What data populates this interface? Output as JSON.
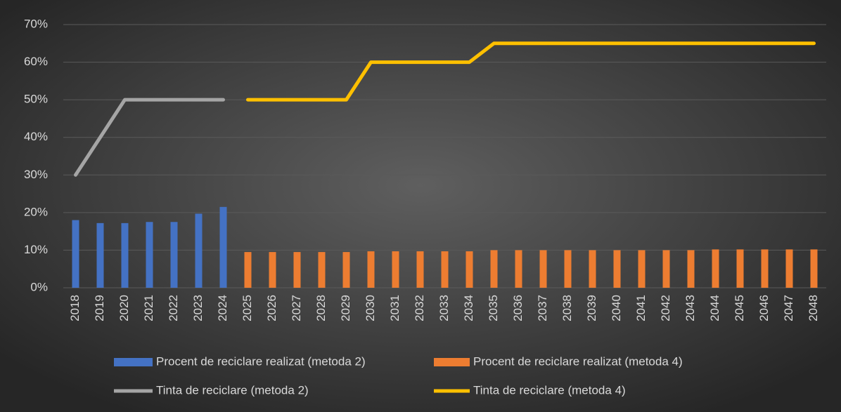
{
  "chart_data": {
    "type": "bar",
    "categories": [
      "2018",
      "2019",
      "2020",
      "2021",
      "2022",
      "2023",
      "2024",
      "2025",
      "2026",
      "2027",
      "2028",
      "2029",
      "2030",
      "2031",
      "2032",
      "2033",
      "2034",
      "2035",
      "2036",
      "2037",
      "2038",
      "2039",
      "2040",
      "2041",
      "2042",
      "2043",
      "2044",
      "2045",
      "2046",
      "2047",
      "2048"
    ],
    "series": [
      {
        "name": "Procent de reciclare realizat (metoda 2)",
        "type": "bar",
        "color": "#4472c4",
        "values": [
          18,
          17.2,
          17.2,
          17.5,
          17.5,
          19.7,
          21.5,
          null,
          null,
          null,
          null,
          null,
          null,
          null,
          null,
          null,
          null,
          null,
          null,
          null,
          null,
          null,
          null,
          null,
          null,
          null,
          null,
          null,
          null,
          null,
          null
        ]
      },
      {
        "name": "Procent de reciclare realizat (metoda 4)",
        "type": "bar",
        "color": "#ed7d31",
        "values": [
          null,
          null,
          null,
          null,
          null,
          null,
          null,
          9.5,
          9.5,
          9.5,
          9.5,
          9.5,
          9.7,
          9.7,
          9.7,
          9.7,
          9.7,
          10,
          10,
          10,
          10,
          10,
          10,
          10,
          10,
          10,
          10.2,
          10.2,
          10.2,
          10.2,
          10.2
        ]
      },
      {
        "name": "Tinta de reciclare (metoda 2)",
        "type": "line",
        "color": "#a5a5a5",
        "values": [
          30,
          40,
          50,
          50,
          50,
          50,
          50,
          null,
          null,
          null,
          null,
          null,
          null,
          null,
          null,
          null,
          null,
          null,
          null,
          null,
          null,
          null,
          null,
          null,
          null,
          null,
          null,
          null,
          null,
          null,
          null
        ]
      },
      {
        "name": "Tinta de reciclare (metoda 4)",
        "type": "line",
        "color": "#ffc000",
        "values": [
          null,
          null,
          null,
          null,
          null,
          null,
          null,
          50,
          50,
          50,
          50,
          50,
          60,
          60,
          60,
          60,
          60,
          65,
          65,
          65,
          65,
          65,
          65,
          65,
          65,
          65,
          65,
          65,
          65,
          65,
          65
        ]
      }
    ],
    "ylim": [
      0,
      70
    ],
    "yticks": [
      {
        "value": 0,
        "label": "0%"
      },
      {
        "value": 10,
        "label": "10%"
      },
      {
        "value": 20,
        "label": "20%"
      },
      {
        "value": 30,
        "label": "30%"
      },
      {
        "value": 40,
        "label": "40%"
      },
      {
        "value": 50,
        "label": "50%"
      },
      {
        "value": 60,
        "label": "60%"
      },
      {
        "value": 70,
        "label": "70%"
      }
    ],
    "grid": true
  }
}
